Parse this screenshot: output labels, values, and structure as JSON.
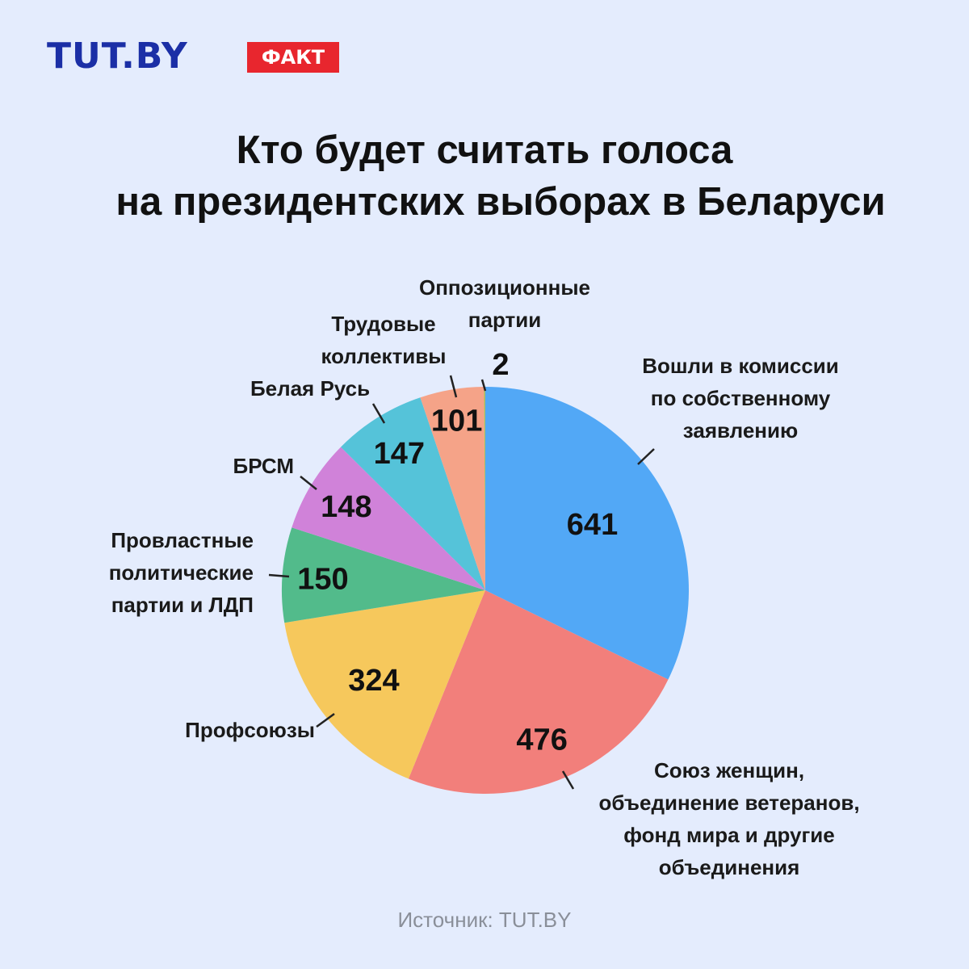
{
  "header": {
    "logo_text": "TUT.BY",
    "badge_text": "ФАКТ",
    "title_line1": "Кто будет считать голоса",
    "title_line2": "на президентских выборах в Беларуси"
  },
  "footer": {
    "source": "Источник: TUT.BY"
  },
  "chart_data": {
    "type": "pie",
    "title": "Кто будет считать голоса на президентских выборах в Беларуси",
    "slices": [
      {
        "label": [
          "Вошли в комиссии",
          "по собственному",
          "заявлению"
        ],
        "value": 641,
        "color": "#52a8f6"
      },
      {
        "label": [
          "Союз женщин,",
          "объединение ветеранов,",
          "фонд мира и другие",
          "объединения"
        ],
        "value": 476,
        "color": "#f27f7b"
      },
      {
        "label": [
          "Профсоюзы"
        ],
        "value": 324,
        "color": "#f6c85c"
      },
      {
        "label": [
          "Провластные",
          "политические",
          "партии и ЛДП"
        ],
        "value": 150,
        "color": "#52bb8b"
      },
      {
        "label": [
          "БРСМ"
        ],
        "value": 148,
        "color": "#d082d9"
      },
      {
        "label": [
          "Белая Русь"
        ],
        "value": 147,
        "color": "#55c3d9"
      },
      {
        "label": [
          "Трудовые",
          "коллективы"
        ],
        "value": 101,
        "color": "#f5a388"
      },
      {
        "label": [
          "Оппозиционные",
          "партии"
        ],
        "value": 2,
        "color": "#a8bf5e"
      }
    ]
  }
}
